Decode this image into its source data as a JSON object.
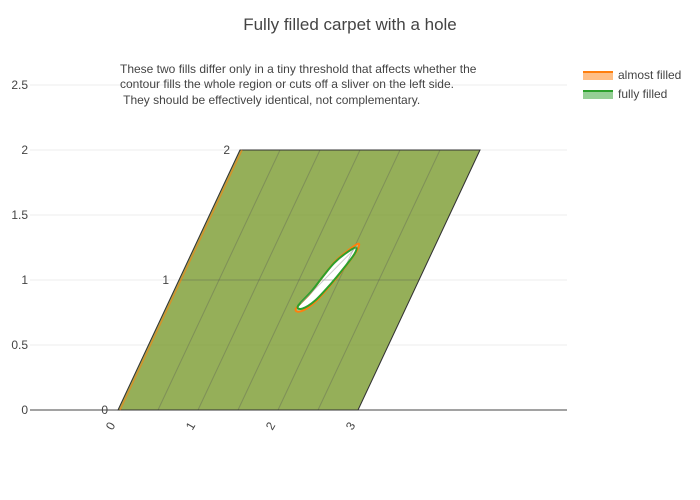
{
  "chart_data": {
    "type": "contourcarpet",
    "title": "Fully filled carpet with a hole",
    "xlabel": "",
    "ylabel": "",
    "ylim": [
      0,
      2.6
    ],
    "y_ticks": [
      "0",
      "0.5",
      "1",
      "1.5",
      "2",
      "2.5"
    ],
    "grid": true,
    "carpet": {
      "a_range": [
        0,
        3
      ],
      "b_range": [
        0,
        2
      ],
      "a_ticks": [
        "0",
        "1",
        "2",
        "3"
      ],
      "b_ticks": [
        "0",
        "1",
        "2"
      ],
      "a_tick_angle": -60
    },
    "series": [
      {
        "name": "almost filled",
        "color": "#ff7f0e",
        "fill_opacity": 0.5,
        "hole": [
          [
            1.63,
            0.78
          ],
          [
            1.72,
            0.9
          ],
          [
            1.78,
            1.03
          ],
          [
            1.84,
            1.14
          ],
          [
            1.93,
            1.22
          ],
          [
            2.03,
            1.28
          ],
          [
            2.05,
            1.22
          ],
          [
            2.0,
            1.1
          ],
          [
            1.93,
            0.97
          ],
          [
            1.83,
            0.83
          ],
          [
            1.71,
            0.76
          ]
        ]
      },
      {
        "name": "fully filled",
        "color": "#2ca02c",
        "fill_opacity": 0.5,
        "hole": [
          [
            1.64,
            0.8
          ],
          [
            1.72,
            0.91
          ],
          [
            1.78,
            1.03
          ],
          [
            1.84,
            1.13
          ],
          [
            1.92,
            1.2
          ],
          [
            2.02,
            1.25
          ],
          [
            2.04,
            1.2
          ],
          [
            1.99,
            1.09
          ],
          [
            1.92,
            0.97
          ],
          [
            1.82,
            0.84
          ],
          [
            1.71,
            0.78
          ]
        ]
      }
    ],
    "annotation": [
      "These two fills differ only in a tiny threshold that affects whether the",
      "contour fills the whole region or cuts off a sliver on the left side.",
      " They should be effectively identical, not complementary."
    ],
    "legend_position": "top-right"
  }
}
